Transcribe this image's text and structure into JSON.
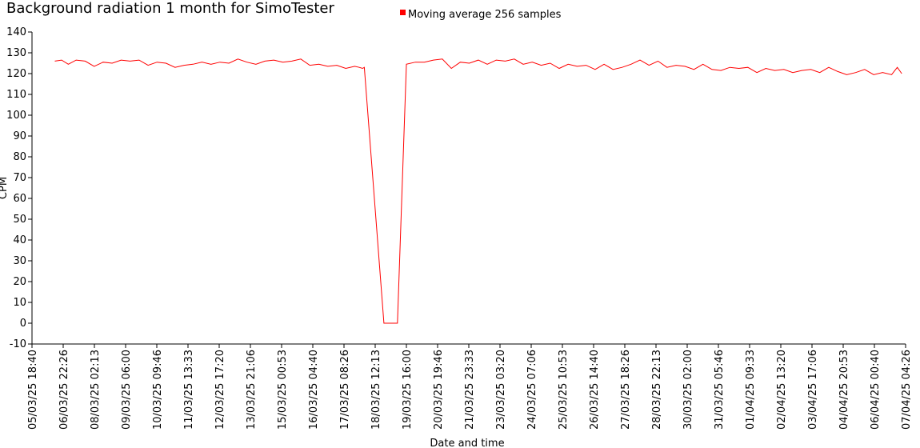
{
  "chart_data": {
    "type": "line",
    "title": "Background radiation 1 month for SimoTester",
    "xlabel": "Date and time",
    "ylabel": "CPM",
    "ylim": [
      -10,
      140
    ],
    "yticks": [
      -10,
      0,
      10,
      20,
      30,
      40,
      50,
      60,
      70,
      80,
      90,
      100,
      110,
      120,
      130,
      140
    ],
    "xlim": [
      "05/03/25 18:40",
      "07/04/25 04:26"
    ],
    "xticks": [
      "05/03/25 18:40",
      "06/03/25 22:26",
      "08/03/25 02:13",
      "09/03/25 06:00",
      "10/03/25 09:46",
      "11/03/25 13:33",
      "12/03/25 17:20",
      "13/03/25 21:06",
      "15/03/25 00:53",
      "16/03/25 04:40",
      "17/03/25 08:26",
      "18/03/25 12:13",
      "19/03/25 16:00",
      "20/03/25 19:46",
      "21/03/25 23:33",
      "23/03/25 03:20",
      "24/03/25 07:06",
      "25/03/25 10:53",
      "26/03/25 14:40",
      "27/03/25 18:26",
      "28/03/25 22:13",
      "30/03/25 02:00",
      "31/03/25 05:46",
      "01/04/25 09:33",
      "02/04/25 13:20",
      "03/04/25 17:06",
      "04/04/25 20:53",
      "06/04/25 00:40",
      "07/04/25 04:26"
    ],
    "legend": {
      "placement": "top-center"
    },
    "grid": false,
    "series": [
      {
        "name": "Moving average 256 samples",
        "color": "#ff0000",
        "x": [
          "06/03/25 15:00",
          "06/03/25 21:00",
          "07/03/25 03:00",
          "07/03/25 10:00",
          "07/03/25 18:00",
          "08/03/25 02:00",
          "08/03/25 10:00",
          "08/03/25 18:00",
          "09/03/25 02:00",
          "09/03/25 10:00",
          "09/03/25 18:00",
          "10/03/25 02:00",
          "10/03/25 10:00",
          "10/03/25 18:00",
          "11/03/25 02:00",
          "11/03/25 10:00",
          "11/03/25 18:00",
          "12/03/25 02:00",
          "12/03/25 10:00",
          "12/03/25 18:00",
          "13/03/25 02:00",
          "13/03/25 10:00",
          "13/03/25 18:00",
          "14/03/25 02:00",
          "14/03/25 10:00",
          "14/03/25 18:00",
          "15/03/25 02:00",
          "15/03/25 10:00",
          "15/03/25 18:00",
          "16/03/25 02:00",
          "16/03/25 10:00",
          "16/03/25 18:00",
          "17/03/25 02:00",
          "17/03/25 10:00",
          "17/03/25 18:00",
          "17/03/25 22:00",
          "18/03/25 01:00",
          "18/03/25 02:30",
          "18/03/25 20:00",
          "18/03/25 22:00",
          "19/03/25 00:00",
          "19/03/25 08:00",
          "19/03/25 16:00",
          "20/03/25 00:00",
          "20/03/25 08:00",
          "20/03/25 16:00",
          "21/03/25 00:00",
          "21/03/25 08:00",
          "21/03/25 16:00",
          "22/03/25 00:00",
          "22/03/25 08:00",
          "22/03/25 16:00",
          "23/03/25 00:00",
          "23/03/25 08:00",
          "23/03/25 16:00",
          "24/03/25 00:00",
          "24/03/25 08:00",
          "24/03/25 16:00",
          "25/03/25 00:00",
          "25/03/25 08:00",
          "25/03/25 16:00",
          "26/03/25 00:00",
          "26/03/25 08:00",
          "26/03/25 16:00",
          "27/03/25 00:00",
          "27/03/25 08:00",
          "27/03/25 16:00",
          "28/03/25 00:00",
          "28/03/25 08:00",
          "28/03/25 16:00",
          "29/03/25 00:00",
          "29/03/25 08:00",
          "29/03/25 16:00",
          "30/03/25 00:00",
          "30/03/25 08:00",
          "30/03/25 16:00",
          "31/03/25 00:00",
          "31/03/25 08:00",
          "31/03/25 16:00",
          "01/04/25 00:00",
          "01/04/25 08:00",
          "01/04/25 16:00",
          "02/04/25 00:00",
          "02/04/25 08:00",
          "02/04/25 16:00",
          "03/04/25 00:00",
          "03/04/25 08:00",
          "03/04/25 16:00",
          "04/04/25 00:00",
          "04/04/25 08:00",
          "04/04/25 16:00",
          "05/04/25 00:00",
          "05/04/25 08:00",
          "05/04/25 16:00",
          "06/04/25 00:00",
          "06/04/25 08:00",
          "06/04/25 16:00",
          "06/04/25 21:00",
          "07/04/25 01:00"
        ],
        "y": [
          126,
          126.5,
          124.5,
          126.5,
          126,
          123.5,
          125.5,
          125,
          126.5,
          126,
          126.5,
          124,
          125.5,
          125,
          123,
          124,
          124.5,
          125.5,
          124.5,
          125.5,
          125,
          127,
          125.5,
          124.5,
          126,
          126.5,
          125.5,
          126,
          127,
          124,
          124.5,
          123.5,
          124,
          122.5,
          123.5,
          123,
          122.5,
          123,
          0,
          0,
          0,
          0,
          124.5,
          125.5,
          125.5,
          126.5,
          127,
          122.5,
          125.5,
          125,
          126.5,
          124.5,
          126.5,
          126,
          127,
          124.5,
          125.5,
          124,
          125,
          122.5,
          124.5,
          123.5,
          124,
          122,
          124.5,
          122,
          123,
          124.5,
          126.5,
          124,
          126,
          123,
          124,
          123.5,
          122,
          124.5,
          122,
          121.5,
          123,
          122.5,
          123,
          120.5,
          122.5,
          121.5,
          122,
          120.5,
          121.5,
          122,
          120.5,
          123,
          121,
          119.5,
          120.5,
          122,
          119.5,
          120.5,
          119.5,
          123,
          120
        ]
      }
    ]
  }
}
